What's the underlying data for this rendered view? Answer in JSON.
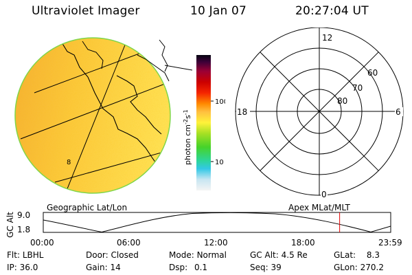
{
  "header": {
    "instrument": "Ultraviolet Imager",
    "date": "10 Jan 07",
    "time": "20:27:04 UT"
  },
  "geo_panel": {
    "label": "Geographic Lat/Lon",
    "grid_marker": "8"
  },
  "colorbar": {
    "unit_label": "photon cm",
    "unit_sup1": "-2",
    "unit_mid": "s",
    "unit_sup2": "-1",
    "tick_100": "100",
    "tick_10": "10"
  },
  "polar_panel": {
    "label": "Apex MLat/MLT",
    "mlt_top": "12",
    "mlt_left": "18",
    "mlt_right": "6",
    "mlt_bottom": "0",
    "lat_60": "60",
    "lat_70": "70",
    "lat_80": "80"
  },
  "altitude_plot": {
    "ylabel": "GC Alt",
    "ymax": "9.0",
    "ymin": "1.8",
    "x_ticks": [
      "00:00",
      "06:00",
      "12:00",
      "18:00",
      "23:59"
    ],
    "current_time_fraction": 0.853,
    "colors": {
      "marker": "#e00000"
    }
  },
  "status": {
    "flt_label": "Flt:",
    "flt_value": "LBHL",
    "ip_label": "IP:",
    "ip_value": "36.0",
    "door_label": "Door:",
    "door_value": "Closed",
    "gain_label": "Gain:",
    "gain_value": "14",
    "mode_label": "Mode:",
    "mode_value": "Normal",
    "dsp_label": "Dsp:",
    "dsp_value": "0.1",
    "gcalt_label": "GC Alt:",
    "gcalt_value": "4.5 Re",
    "seq_label": "Seq:",
    "seq_value": "39",
    "glat_label": "GLat:",
    "glat_value": "8.3",
    "glon_label": "GLon:",
    "glon_value": "270.2"
  }
}
